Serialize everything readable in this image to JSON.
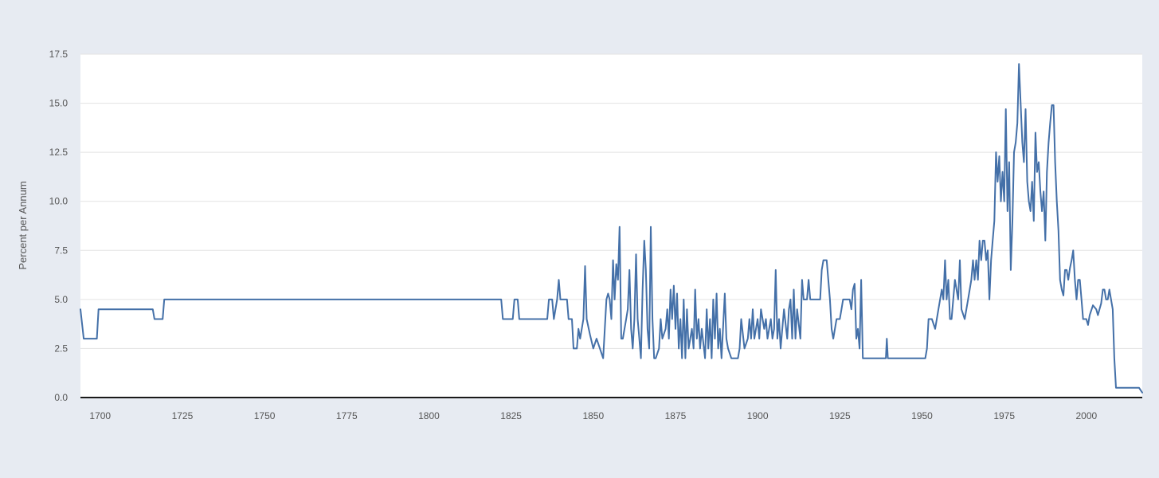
{
  "chart_data": {
    "type": "line",
    "title": "",
    "xlabel": "",
    "ylabel": "Percent per Annum",
    "xlim": [
      1694,
      2017
    ],
    "ylim": [
      0,
      17.5
    ],
    "x_ticks": [
      1700,
      1725,
      1750,
      1775,
      1800,
      1825,
      1850,
      1875,
      1900,
      1925,
      1950,
      1975,
      2000
    ],
    "y_ticks": [
      0,
      2.5,
      5,
      7.5,
      10,
      12.5,
      15,
      17.5
    ],
    "y_tick_labels": [
      "0.0",
      "2.5",
      "5.0",
      "7.5",
      "10.0",
      "12.5",
      "15.0",
      "17.5"
    ],
    "grid": "horizontal",
    "legend": "none",
    "colors": {
      "series": "#4470a8",
      "plot_background": "#ffffff",
      "page_background": "#e7ebf2",
      "grid": "#e3e3e3"
    },
    "series": [
      {
        "points": [
          [
            1694,
            4.5
          ],
          [
            1695,
            3
          ],
          [
            1699,
            3
          ],
          [
            1699.5,
            4.5
          ],
          [
            1716,
            4.5
          ],
          [
            1716.5,
            4
          ],
          [
            1719,
            4
          ],
          [
            1719.5,
            5
          ],
          [
            1822,
            5
          ],
          [
            1822.5,
            4
          ],
          [
            1825.5,
            4
          ],
          [
            1826,
            5
          ],
          [
            1827,
            5
          ],
          [
            1827.5,
            4
          ],
          [
            1836,
            4
          ],
          [
            1836.5,
            5
          ],
          [
            1837.5,
            5
          ],
          [
            1838,
            4
          ],
          [
            1839,
            5
          ],
          [
            1839.5,
            6
          ],
          [
            1840,
            5
          ],
          [
            1842,
            5
          ],
          [
            1842.5,
            4
          ],
          [
            1843.5,
            4
          ],
          [
            1844,
            2.5
          ],
          [
            1845,
            2.5
          ],
          [
            1845.5,
            3.5
          ],
          [
            1846,
            3
          ],
          [
            1847,
            4
          ],
          [
            1847.5,
            6.7
          ],
          [
            1848,
            4
          ],
          [
            1849,
            3.2
          ],
          [
            1850,
            2.5
          ],
          [
            1851,
            3
          ],
          [
            1852,
            2.5
          ],
          [
            1853,
            2
          ],
          [
            1854,
            5
          ],
          [
            1854.5,
            5.3
          ],
          [
            1855,
            5
          ],
          [
            1855.5,
            4
          ],
          [
            1856,
            7
          ],
          [
            1856.5,
            5
          ],
          [
            1857,
            6.8
          ],
          [
            1857.5,
            6
          ],
          [
            1858,
            8.7
          ],
          [
            1858.5,
            3
          ],
          [
            1859,
            3
          ],
          [
            1860,
            4
          ],
          [
            1860.5,
            4.5
          ],
          [
            1861,
            6.5
          ],
          [
            1861.5,
            3.5
          ],
          [
            1862,
            2.5
          ],
          [
            1862.5,
            4
          ],
          [
            1863,
            7.3
          ],
          [
            1863.5,
            4
          ],
          [
            1864,
            3
          ],
          [
            1864.5,
            2
          ],
          [
            1865,
            5.5
          ],
          [
            1865.5,
            8
          ],
          [
            1866,
            6.5
          ],
          [
            1866.5,
            3.5
          ],
          [
            1867,
            2.5
          ],
          [
            1867.5,
            8.7
          ],
          [
            1868,
            4
          ],
          [
            1868.5,
            2
          ],
          [
            1869,
            2
          ],
          [
            1870,
            2.5
          ],
          [
            1870.5,
            4
          ],
          [
            1871,
            3
          ],
          [
            1872,
            3.5
          ],
          [
            1872.5,
            4.5
          ],
          [
            1873,
            3
          ],
          [
            1873.5,
            5.5
          ],
          [
            1874,
            4
          ],
          [
            1874.5,
            5.7
          ],
          [
            1875,
            3.5
          ],
          [
            1875.5,
            5.3
          ],
          [
            1876,
            2.5
          ],
          [
            1876.5,
            4
          ],
          [
            1877,
            2
          ],
          [
            1877.5,
            5
          ],
          [
            1878,
            2
          ],
          [
            1878.5,
            4.5
          ],
          [
            1879,
            2.5
          ],
          [
            1880,
            3.5
          ],
          [
            1880.5,
            2.5
          ],
          [
            1881,
            5.5
          ],
          [
            1881.5,
            3
          ],
          [
            1882,
            4
          ],
          [
            1882.5,
            2.5
          ],
          [
            1883,
            3.5
          ],
          [
            1884,
            2
          ],
          [
            1884.5,
            4.5
          ],
          [
            1885,
            2.5
          ],
          [
            1885.5,
            4
          ],
          [
            1886,
            2
          ],
          [
            1886.5,
            5
          ],
          [
            1887,
            3
          ],
          [
            1887.5,
            5.3
          ],
          [
            1888,
            2.5
          ],
          [
            1888.5,
            3.5
          ],
          [
            1889,
            2
          ],
          [
            1890,
            5.3
          ],
          [
            1890.5,
            3
          ],
          [
            1891,
            2.5
          ],
          [
            1892,
            2
          ],
          [
            1894,
            2
          ],
          [
            1894.5,
            2.5
          ],
          [
            1895,
            4
          ],
          [
            1896,
            2.5
          ],
          [
            1897,
            3
          ],
          [
            1897.5,
            4
          ],
          [
            1898,
            3
          ],
          [
            1898.5,
            4.5
          ],
          [
            1899,
            3
          ],
          [
            1900,
            4
          ],
          [
            1900.5,
            3
          ],
          [
            1901,
            4.5
          ],
          [
            1902,
            3.5
          ],
          [
            1902.5,
            4
          ],
          [
            1903,
            3
          ],
          [
            1904,
            4
          ],
          [
            1904.5,
            3
          ],
          [
            1905,
            3.5
          ],
          [
            1905.5,
            6.5
          ],
          [
            1906,
            3
          ],
          [
            1906.5,
            4
          ],
          [
            1907,
            2.5
          ],
          [
            1908,
            4.5
          ],
          [
            1909,
            3
          ],
          [
            1909.5,
            4.5
          ],
          [
            1910,
            5
          ],
          [
            1910.5,
            3
          ],
          [
            1911,
            5.5
          ],
          [
            1911.5,
            3
          ],
          [
            1912,
            4.5
          ],
          [
            1913,
            3
          ],
          [
            1913.5,
            6
          ],
          [
            1914,
            5
          ],
          [
            1915,
            5
          ],
          [
            1915.5,
            6
          ],
          [
            1916,
            5
          ],
          [
            1919,
            5
          ],
          [
            1919.5,
            6.5
          ],
          [
            1920,
            7
          ],
          [
            1921,
            7
          ],
          [
            1922,
            5
          ],
          [
            1922.5,
            3.5
          ],
          [
            1923,
            3
          ],
          [
            1924,
            4
          ],
          [
            1925,
            4
          ],
          [
            1925.5,
            4.5
          ],
          [
            1926,
            5
          ],
          [
            1928,
            5
          ],
          [
            1928.5,
            4.5
          ],
          [
            1929,
            5.5
          ],
          [
            1929.5,
            5.8
          ],
          [
            1930,
            3
          ],
          [
            1930.5,
            3.5
          ],
          [
            1931,
            2.5
          ],
          [
            1931.5,
            6
          ],
          [
            1932,
            2
          ],
          [
            1939,
            2
          ],
          [
            1939.3,
            3
          ],
          [
            1939.6,
            2
          ],
          [
            1951,
            2
          ],
          [
            1951.5,
            2.5
          ],
          [
            1952,
            4
          ],
          [
            1953,
            4
          ],
          [
            1954,
            3.5
          ],
          [
            1955,
            4.5
          ],
          [
            1956,
            5.5
          ],
          [
            1956.5,
            5
          ],
          [
            1957,
            7
          ],
          [
            1957.5,
            5
          ],
          [
            1958,
            6
          ],
          [
            1958.5,
            4
          ],
          [
            1959,
            4
          ],
          [
            1960,
            6
          ],
          [
            1961,
            5
          ],
          [
            1961.5,
            7
          ],
          [
            1962,
            4.5
          ],
          [
            1963,
            4
          ],
          [
            1964,
            5
          ],
          [
            1965,
            6
          ],
          [
            1965.5,
            7
          ],
          [
            1966,
            6
          ],
          [
            1966.5,
            7
          ],
          [
            1967,
            6
          ],
          [
            1967.5,
            8
          ],
          [
            1968,
            7
          ],
          [
            1968.5,
            8
          ],
          [
            1969,
            8
          ],
          [
            1969.5,
            7
          ],
          [
            1970,
            7.5
          ],
          [
            1970.5,
            5
          ],
          [
            1971,
            7
          ],
          [
            1971.5,
            8
          ],
          [
            1972,
            9
          ],
          [
            1972.5,
            12.5
          ],
          [
            1973,
            11
          ],
          [
            1973.5,
            12.3
          ],
          [
            1974,
            10
          ],
          [
            1974.5,
            11.5
          ],
          [
            1975,
            10
          ],
          [
            1975.5,
            14.7
          ],
          [
            1976,
            9.5
          ],
          [
            1976.5,
            12
          ],
          [
            1977,
            6.5
          ],
          [
            1977.5,
            9
          ],
          [
            1978,
            12.5
          ],
          [
            1978.5,
            13
          ],
          [
            1979,
            14
          ],
          [
            1979.5,
            17
          ],
          [
            1980,
            15
          ],
          [
            1980.5,
            13
          ],
          [
            1981,
            12
          ],
          [
            1981.5,
            14.7
          ],
          [
            1982,
            11
          ],
          [
            1982.5,
            10
          ],
          [
            1983,
            9.5
          ],
          [
            1983.5,
            11
          ],
          [
            1984,
            9
          ],
          [
            1984.5,
            13.5
          ],
          [
            1985,
            11.5
          ],
          [
            1985.5,
            12
          ],
          [
            1986,
            10.5
          ],
          [
            1986.5,
            9.5
          ],
          [
            1987,
            10.5
          ],
          [
            1987.5,
            8
          ],
          [
            1988,
            11.5
          ],
          [
            1988.5,
            13
          ],
          [
            1989,
            14
          ],
          [
            1989.5,
            14.9
          ],
          [
            1990,
            14.9
          ],
          [
            1990.5,
            12
          ],
          [
            1991,
            10
          ],
          [
            1991.5,
            8.5
          ],
          [
            1992,
            6
          ],
          [
            1992.5,
            5.5
          ],
          [
            1993,
            5.2
          ],
          [
            1993.5,
            6.5
          ],
          [
            1994,
            6.5
          ],
          [
            1994.5,
            6
          ],
          [
            1995,
            6.6
          ],
          [
            1995.5,
            7
          ],
          [
            1996,
            7.5
          ],
          [
            1996.5,
            6
          ],
          [
            1997,
            5
          ],
          [
            1997.5,
            6
          ],
          [
            1998,
            6
          ],
          [
            1998.5,
            5
          ],
          [
            1999,
            4
          ],
          [
            2000,
            4
          ],
          [
            2000.5,
            3.7
          ],
          [
            2001,
            4.2
          ],
          [
            2002,
            4.7
          ],
          [
            2003,
            4.5
          ],
          [
            2003.5,
            4.2
          ],
          [
            2004,
            4.5
          ],
          [
            2004.5,
            4.8
          ],
          [
            2005,
            5.5
          ],
          [
            2005.5,
            5.5
          ],
          [
            2006,
            5
          ],
          [
            2006.5,
            5
          ],
          [
            2007,
            5.5
          ],
          [
            2008,
            4.5
          ],
          [
            2008.5,
            2
          ],
          [
            2009,
            0.5
          ],
          [
            2016,
            0.5
          ],
          [
            2017,
            0.25
          ]
        ]
      }
    ]
  }
}
